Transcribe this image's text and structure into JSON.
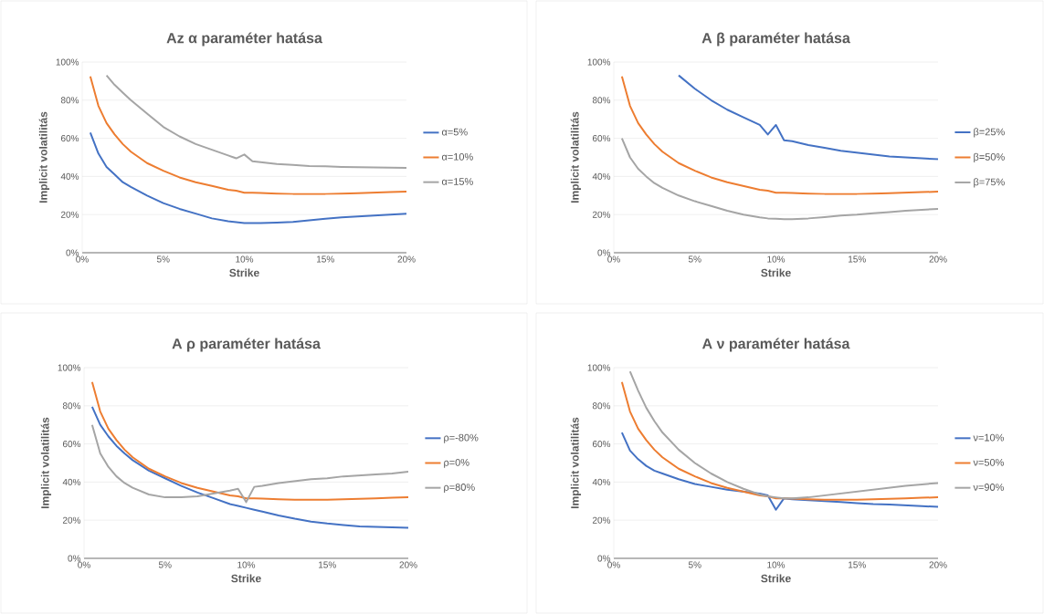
{
  "chart_data": [
    {
      "type": "line",
      "title": "Az α paraméter hatása",
      "xlabel": "Strike",
      "ylabel": "Implicit volatilitás",
      "grid": "y",
      "legend": "right",
      "marker": "none",
      "line_style": "solid",
      "x": [
        0.5,
        1,
        1.5,
        2,
        2.5,
        3,
        4,
        5,
        6,
        7,
        8,
        9,
        9.5,
        10,
        10.5,
        11,
        12,
        13,
        14,
        15,
        16,
        17,
        18,
        19,
        20
      ],
      "xlim": [
        0,
        20
      ],
      "ylim": [
        0,
        100
      ],
      "xticks": [
        {
          "value": 0,
          "label": "0%"
        },
        {
          "value": 5,
          "label": "5%"
        },
        {
          "value": 10,
          "label": "10%"
        },
        {
          "value": 15,
          "label": "15%"
        },
        {
          "value": 20,
          "label": "20%"
        }
      ],
      "yticks": [
        {
          "value": 0,
          "label": "0%"
        },
        {
          "value": 20,
          "label": "20%"
        },
        {
          "value": 40,
          "label": "40%"
        },
        {
          "value": 60,
          "label": "60%"
        },
        {
          "value": 80,
          "label": "80%"
        },
        {
          "value": 100,
          "label": "100%"
        }
      ],
      "series": [
        {
          "name": "α=5%",
          "color": "#4472c4",
          "values": [
            63,
            52,
            45,
            41,
            37,
            34.5,
            30,
            26,
            23,
            20.5,
            18,
            16.5,
            16,
            15.5,
            15.5,
            15.5,
            15.8,
            16.2,
            17,
            17.8,
            18.5,
            19,
            19.5,
            20,
            20.5
          ]
        },
        {
          "name": "α=10%",
          "color": "#ed7d31",
          "values": [
            92.5,
            77,
            68,
            62,
            57,
            53,
            47,
            43,
            39.5,
            37,
            35,
            33,
            32.5,
            31.5,
            31.5,
            31.3,
            31,
            30.8,
            30.8,
            30.8,
            31,
            31.2,
            31.5,
            31.8,
            32
          ]
        },
        {
          "name": "α=15%",
          "color": "#a5a5a5",
          "values": [
            null,
            null,
            93,
            88,
            84,
            80,
            73,
            66,
            61,
            57,
            54,
            51,
            49.5,
            51.5,
            48,
            47.5,
            46.5,
            46,
            45.5,
            45.3,
            45,
            44.8,
            44.7,
            44.6,
            44.5
          ]
        }
      ]
    },
    {
      "type": "line",
      "title": "A β paraméter hatása",
      "xlabel": "Strike",
      "ylabel": "Implicit volatilitás",
      "grid": "y",
      "legend": "right",
      "marker": "none",
      "line_style": "solid",
      "x": [
        0.5,
        1,
        1.5,
        2,
        2.5,
        3,
        4,
        5,
        6,
        7,
        8,
        9,
        9.5,
        10,
        10.5,
        11,
        12,
        13,
        14,
        15,
        16,
        17,
        18,
        19,
        20
      ],
      "xlim": [
        0,
        20
      ],
      "ylim": [
        0,
        100
      ],
      "xticks": [
        {
          "value": 0,
          "label": "0%"
        },
        {
          "value": 5,
          "label": "5%"
        },
        {
          "value": 10,
          "label": "10%"
        },
        {
          "value": 15,
          "label": "15%"
        },
        {
          "value": 20,
          "label": "20%"
        }
      ],
      "yticks": [
        {
          "value": 0,
          "label": "0%"
        },
        {
          "value": 20,
          "label": "20%"
        },
        {
          "value": 40,
          "label": "40%"
        },
        {
          "value": 60,
          "label": "60%"
        },
        {
          "value": 80,
          "label": "80%"
        },
        {
          "value": 100,
          "label": "100%"
        }
      ],
      "series": [
        {
          "name": "β=25%",
          "color": "#4472c4",
          "values": [
            null,
            null,
            null,
            null,
            null,
            null,
            93,
            86,
            80,
            75,
            71,
            67,
            62,
            67,
            59,
            58.5,
            56.5,
            55,
            53.5,
            52.5,
            51.5,
            50.5,
            50,
            49.5,
            49
          ]
        },
        {
          "name": "β=50%",
          "color": "#ed7d31",
          "values": [
            92.5,
            77,
            68,
            62,
            57,
            53,
            47,
            43,
            39.5,
            37,
            35,
            33,
            32.5,
            31.5,
            31.5,
            31.3,
            31,
            30.8,
            30.8,
            30.8,
            31,
            31.2,
            31.5,
            31.8,
            32
          ]
        },
        {
          "name": "β=75%",
          "color": "#a5a5a5",
          "values": [
            60,
            50,
            44,
            40,
            36.5,
            34,
            30,
            27,
            24.5,
            22,
            20,
            18.5,
            18,
            17.8,
            17.6,
            17.6,
            18,
            18.7,
            19.5,
            20,
            20.7,
            21.3,
            22,
            22.5,
            23
          ]
        }
      ]
    },
    {
      "type": "line",
      "title": "A ρ paraméter hatása",
      "xlabel": "Strike",
      "ylabel": "Implicit volatilitás",
      "grid": "y",
      "legend": "right",
      "marker": "none",
      "line_style": "solid",
      "x": [
        0.5,
        1,
        1.5,
        2,
        2.5,
        3,
        4,
        5,
        6,
        7,
        8,
        9,
        9.5,
        10,
        10.5,
        11,
        12,
        13,
        14,
        15,
        16,
        17,
        18,
        19,
        20
      ],
      "xlim": [
        0,
        20
      ],
      "ylim": [
        0,
        100
      ],
      "xticks": [
        {
          "value": 0,
          "label": "0%"
        },
        {
          "value": 5,
          "label": "5%"
        },
        {
          "value": 10,
          "label": "10%"
        },
        {
          "value": 15,
          "label": "15%"
        },
        {
          "value": 20,
          "label": "20%"
        }
      ],
      "yticks": [
        {
          "value": 0,
          "label": "0%"
        },
        {
          "value": 20,
          "label": "20%"
        },
        {
          "value": 40,
          "label": "40%"
        },
        {
          "value": 60,
          "label": "60%"
        },
        {
          "value": 80,
          "label": "80%"
        },
        {
          "value": 100,
          "label": "100%"
        }
      ],
      "series": [
        {
          "name": "ρ=-80%",
          "color": "#4472c4",
          "values": [
            79.5,
            70,
            64,
            59,
            55,
            51.5,
            46,
            42,
            38,
            34.5,
            31.5,
            28.5,
            27.5,
            26.5,
            25.5,
            24.5,
            22.5,
            20.8,
            19.3,
            18.3,
            17.5,
            16.8,
            16.5,
            16.3,
            16
          ]
        },
        {
          "name": "ρ=0%",
          "color": "#ed7d31",
          "values": [
            92.5,
            77,
            68,
            62,
            57,
            53,
            47,
            43,
            39.5,
            37,
            35,
            33,
            32.5,
            31.5,
            31.5,
            31.3,
            31,
            30.8,
            30.8,
            30.8,
            31,
            31.2,
            31.5,
            31.8,
            32
          ]
        },
        {
          "name": "ρ=80%",
          "color": "#a5a5a5",
          "values": [
            70,
            55,
            48,
            43,
            39.5,
            37,
            33.5,
            32,
            32,
            32.5,
            34,
            35.5,
            36.5,
            29.5,
            37.5,
            38,
            39.5,
            40.5,
            41.5,
            42,
            43,
            43.5,
            44,
            44.5,
            45.5
          ]
        }
      ]
    },
    {
      "type": "line",
      "title": "A ν paraméter hatása",
      "xlabel": "Strike",
      "ylabel": "Implicit volatilitás",
      "grid": "y",
      "legend": "right",
      "marker": "none",
      "line_style": "solid",
      "x": [
        0.5,
        1,
        1.5,
        2,
        2.5,
        3,
        4,
        5,
        6,
        7,
        8,
        9,
        9.5,
        10,
        10.5,
        11,
        12,
        13,
        14,
        15,
        16,
        17,
        18,
        19,
        20
      ],
      "xlim": [
        0,
        20
      ],
      "ylim": [
        0,
        100
      ],
      "xticks": [
        {
          "value": 0,
          "label": "0%"
        },
        {
          "value": 5,
          "label": "5%"
        },
        {
          "value": 10,
          "label": "10%"
        },
        {
          "value": 15,
          "label": "15%"
        },
        {
          "value": 20,
          "label": "20%"
        }
      ],
      "yticks": [
        {
          "value": 0,
          "label": "0%"
        },
        {
          "value": 20,
          "label": "20%"
        },
        {
          "value": 40,
          "label": "40%"
        },
        {
          "value": 60,
          "label": "60%"
        },
        {
          "value": 80,
          "label": "80%"
        },
        {
          "value": 100,
          "label": "100%"
        }
      ],
      "series": [
        {
          "name": "ν=10%",
          "color": "#4472c4",
          "values": [
            66,
            56.5,
            52,
            48.5,
            46,
            44.5,
            41.5,
            39,
            37.5,
            36,
            35,
            34,
            33,
            25.5,
            31.5,
            31,
            30.5,
            30,
            29.5,
            29,
            28.5,
            28.2,
            27.8,
            27.4,
            27
          ]
        },
        {
          "name": "ν=50%",
          "color": "#ed7d31",
          "values": [
            92.5,
            77,
            68,
            62,
            57,
            53,
            47,
            43,
            39.5,
            37,
            35,
            33,
            32.5,
            31.5,
            31.5,
            31.3,
            31,
            30.8,
            30.8,
            30.8,
            31,
            31.2,
            31.5,
            31.8,
            32
          ]
        },
        {
          "name": "ν=90%",
          "color": "#a5a5a5",
          "values": [
            null,
            98,
            88,
            79,
            72,
            66,
            57,
            50,
            44.5,
            40,
            36.5,
            33.5,
            32.5,
            32,
            31.5,
            31.5,
            32,
            33,
            34,
            35,
            36,
            37,
            38,
            38.8,
            39.5
          ]
        }
      ]
    }
  ]
}
